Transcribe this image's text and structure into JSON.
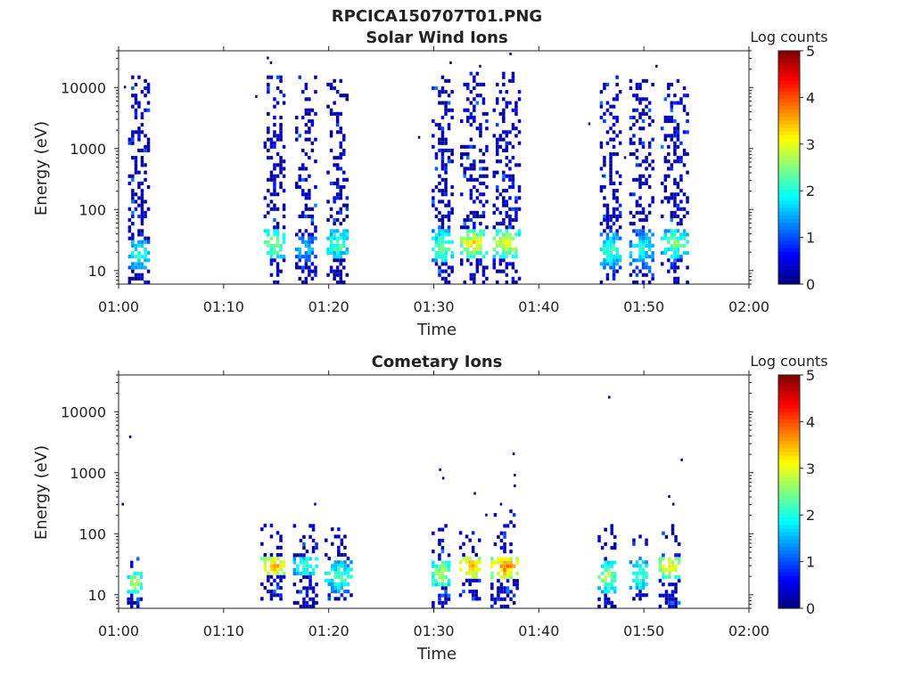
{
  "figure": {
    "title": "RPCICA150707T01.PNG"
  },
  "colors": {
    "text": "#222222",
    "axis": "#222222",
    "background": "#ffffff"
  },
  "chart_data": [
    {
      "type": "heatmap",
      "title": "Solar Wind Ions",
      "xlabel": "Time",
      "ylabel": "Energy (eV)",
      "x_ticks": [
        "01:00",
        "01:10",
        "01:20",
        "01:30",
        "01:40",
        "01:50",
        "02:00"
      ],
      "xlim_minutes": [
        0,
        60
      ],
      "y_scale": "log",
      "ylim": [
        6,
        40000
      ],
      "y_ticks": [
        10,
        100,
        1000,
        10000
      ],
      "y_tick_labels": [
        "10",
        "100",
        "1000",
        "10000"
      ],
      "colorbar": {
        "label": "Log counts",
        "colormap": "jet",
        "range": [
          0,
          5
        ],
        "ticks": [
          "0",
          "1",
          "2",
          "3",
          "4",
          "5"
        ]
      },
      "bursts": [
        {
          "start": 0.9,
          "end": 2.9,
          "emin": 6,
          "emax": 14000,
          "hot_emin": 10,
          "hot_emax": 30,
          "peak": 2.1,
          "sparse": 0.55
        },
        {
          "start": 13.8,
          "end": 15.8,
          "emin": 6,
          "emax": 15000,
          "hot_emin": 15,
          "hot_emax": 45,
          "peak": 2.7,
          "sparse": 0.5
        },
        {
          "start": 16.8,
          "end": 18.8,
          "emin": 6,
          "emax": 14000,
          "hot_emin": 12,
          "hot_emax": 35,
          "peak": 1.6,
          "sparse": 0.5
        },
        {
          "start": 19.8,
          "end": 21.9,
          "emin": 6,
          "emax": 13000,
          "hot_emin": 15,
          "hot_emax": 45,
          "peak": 2.4,
          "sparse": 0.5
        },
        {
          "start": 29.8,
          "end": 31.7,
          "emin": 6,
          "emax": 14000,
          "hot_emin": 12,
          "hot_emax": 45,
          "peak": 2.6,
          "sparse": 0.5
        },
        {
          "start": 32.5,
          "end": 34.9,
          "emin": 6,
          "emax": 16000,
          "hot_emin": 15,
          "hot_emax": 45,
          "peak": 3.3,
          "sparse": 0.5
        },
        {
          "start": 35.6,
          "end": 38.0,
          "emin": 6,
          "emax": 16000,
          "hot_emin": 15,
          "hot_emax": 45,
          "peak": 3.1,
          "sparse": 0.5
        },
        {
          "start": 45.8,
          "end": 47.8,
          "emin": 6,
          "emax": 14000,
          "hot_emin": 10,
          "hot_emax": 40,
          "peak": 2.3,
          "sparse": 0.5
        },
        {
          "start": 48.6,
          "end": 50.8,
          "emin": 6,
          "emax": 13000,
          "hot_emin": 10,
          "hot_emax": 45,
          "peak": 2.0,
          "sparse": 0.5
        },
        {
          "start": 51.6,
          "end": 54.0,
          "emin": 6,
          "emax": 13000,
          "hot_emin": 15,
          "hot_emax": 45,
          "peak": 2.5,
          "sparse": 0.5
        }
      ],
      "isolated": [
        {
          "t": 0.5,
          "e": 10000
        },
        {
          "t": 14.1,
          "e": 30000
        },
        {
          "t": 14.4,
          "e": 25000
        },
        {
          "t": 13.0,
          "e": 7000
        },
        {
          "t": 28.5,
          "e": 1500
        },
        {
          "t": 31.5,
          "e": 25000
        },
        {
          "t": 34.3,
          "e": 22000
        },
        {
          "t": 37.2,
          "e": 35000
        },
        {
          "t": 44.7,
          "e": 2500
        },
        {
          "t": 51.1,
          "e": 22000
        },
        {
          "t": 46.0,
          "e": 350
        },
        {
          "t": 48.1,
          "e": 700
        }
      ]
    },
    {
      "type": "heatmap",
      "title": "Cometary Ions",
      "xlabel": "Time",
      "ylabel": "Energy (eV)",
      "x_ticks": [
        "01:00",
        "01:10",
        "01:20",
        "01:30",
        "01:40",
        "01:50",
        "02:00"
      ],
      "xlim_minutes": [
        0,
        60
      ],
      "y_scale": "log",
      "ylim": [
        6,
        40000
      ],
      "y_ticks": [
        10,
        100,
        1000,
        10000
      ],
      "y_tick_labels": [
        "10",
        "100",
        "1000",
        "10000"
      ],
      "colorbar": {
        "label": "Log counts",
        "colormap": "jet",
        "range": [
          0,
          5
        ],
        "ticks": [
          "0",
          "1",
          "2",
          "3",
          "4",
          "5"
        ]
      },
      "bursts": [
        {
          "start": 0.8,
          "end": 2.2,
          "emin": 6,
          "emax": 55,
          "hot_emin": 10,
          "hot_emax": 22,
          "peak": 2.8,
          "sparse": 0.2
        },
        {
          "start": 13.5,
          "end": 15.8,
          "emin": 8,
          "emax": 140,
          "hot_emin": 20,
          "hot_emax": 40,
          "peak": 3.6,
          "sparse": 0.3
        },
        {
          "start": 16.6,
          "end": 19.0,
          "emin": 6,
          "emax": 130,
          "hot_emin": 20,
          "hot_emax": 40,
          "peak": 2.2,
          "sparse": 0.3
        },
        {
          "start": 19.6,
          "end": 22.1,
          "emin": 8,
          "emax": 130,
          "hot_emin": 10,
          "hot_emax": 35,
          "peak": 2.3,
          "sparse": 0.3
        },
        {
          "start": 29.8,
          "end": 31.6,
          "emin": 6,
          "emax": 140,
          "hot_emin": 12,
          "hot_emax": 35,
          "peak": 2.9,
          "sparse": 0.25
        },
        {
          "start": 32.4,
          "end": 34.4,
          "emin": 8,
          "emax": 150,
          "hot_emin": 18,
          "hot_emax": 40,
          "peak": 3.7,
          "sparse": 0.25
        },
        {
          "start": 35.4,
          "end": 38.0,
          "emin": 6,
          "emax": 250,
          "hot_emin": 18,
          "hot_emax": 40,
          "peak": 3.9,
          "sparse": 0.25
        },
        {
          "start": 45.6,
          "end": 47.3,
          "emin": 6,
          "emax": 130,
          "hot_emin": 10,
          "hot_emax": 35,
          "peak": 2.8,
          "sparse": 0.25
        },
        {
          "start": 48.6,
          "end": 50.3,
          "emin": 8,
          "emax": 130,
          "hot_emin": 12,
          "hot_emax": 35,
          "peak": 2.4,
          "sparse": 0.25
        },
        {
          "start": 51.4,
          "end": 53.4,
          "emin": 6,
          "emax": 140,
          "hot_emin": 18,
          "hot_emax": 40,
          "peak": 3.3,
          "sparse": 0.25
        }
      ],
      "isolated": [
        {
          "t": 1.0,
          "e": 3800
        },
        {
          "t": 0.3,
          "e": 300
        },
        {
          "t": 18.6,
          "e": 300
        },
        {
          "t": 30.5,
          "e": 1100
        },
        {
          "t": 30.8,
          "e": 800
        },
        {
          "t": 33.8,
          "e": 450
        },
        {
          "t": 37.5,
          "e": 2000
        },
        {
          "t": 37.6,
          "e": 900
        },
        {
          "t": 37.6,
          "e": 600
        },
        {
          "t": 46.6,
          "e": 17000
        },
        {
          "t": 52.3,
          "e": 400
        },
        {
          "t": 53.5,
          "e": 1600
        },
        {
          "t": 52.7,
          "e": 300
        },
        {
          "t": 36.3,
          "e": 300
        },
        {
          "t": 34.9,
          "e": 200
        }
      ]
    }
  ]
}
